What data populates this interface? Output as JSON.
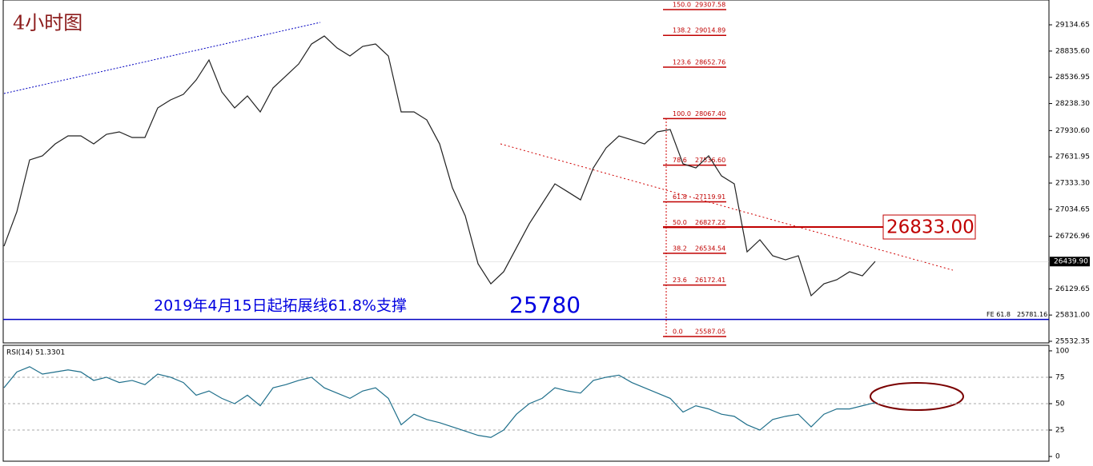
{
  "chart_data": [
    {
      "type": "line",
      "title": "4小时图",
      "color": "#222222",
      "values": [
        26615,
        27006,
        27597,
        27643,
        27779,
        27870,
        27870,
        27779,
        27888,
        27916,
        27852,
        27852,
        28189,
        28280,
        28343,
        28507,
        28734,
        28371,
        28189,
        28325,
        28143,
        28416,
        28552,
        28689,
        28916,
        29007,
        28871,
        28780,
        28889,
        28916,
        28780,
        28143,
        28143,
        28052,
        27779,
        27279,
        26961,
        26415,
        26187,
        26324,
        26597,
        26870,
        27097,
        27324,
        27234,
        27142,
        27506,
        27734,
        27870,
        27825,
        27779,
        27916,
        27943,
        27552,
        27506,
        27643,
        27415,
        27324,
        26551,
        26688,
        26506,
        26460,
        26506,
        26051,
        26187,
        26233,
        26324,
        26278,
        26442
      ],
      "ylim": [
        25523,
        29417
      ],
      "yticks": [
        {
          "value": 29134.65,
          "label": "29134.65"
        },
        {
          "value": 28835.6,
          "label": "28835.60"
        },
        {
          "value": 28536.95,
          "label": "28536.95"
        },
        {
          "value": 28238.3,
          "label": "28238.30"
        },
        {
          "value": 27930.6,
          "label": "27930.60"
        },
        {
          "value": 27631.95,
          "label": "27631.95"
        },
        {
          "value": 27333.3,
          "label": "27333.30"
        },
        {
          "value": 27034.65,
          "label": "27034.65"
        },
        {
          "value": 26726.96,
          "label": "26726.96"
        },
        {
          "value": 26129.65,
          "label": "26129.65"
        },
        {
          "value": 25831,
          "label": "25831.00"
        },
        {
          "value": 25532.35,
          "label": "25532.35"
        }
      ],
      "current_price": {
        "value": 26439.9,
        "label": "26439.90"
      },
      "fibonacci": [
        {
          "level": "150.0",
          "price": {
            "value": 29307.58,
            "label": "29307.58"
          }
        },
        {
          "level": "138.2",
          "price": {
            "value": 29014.89,
            "label": "29014.89"
          }
        },
        {
          "level": "123.6",
          "price": {
            "value": 28652.76,
            "label": "28652.76"
          }
        },
        {
          "level": "100.0",
          "price": {
            "value": 28067.4,
            "label": "28067.40"
          }
        },
        {
          "level": "78.6",
          "price": {
            "value": 27536.6,
            "label": "27536.60"
          }
        },
        {
          "level": "61.8",
          "price": {
            "value": 27119.91,
            "label": "27119.91"
          }
        },
        {
          "level": "50.0",
          "price": {
            "value": 26827.22,
            "label": "26827.22"
          }
        },
        {
          "level": "38.2",
          "price": {
            "value": 26534.54,
            "label": "26534.54"
          }
        },
        {
          "level": "23.6",
          "price": {
            "value": 26172.41,
            "label": "26172.41"
          }
        },
        {
          "level": "0.0",
          "price": {
            "value": 25587.05,
            "label": "25587.05"
          }
        }
      ],
      "fe_line": {
        "name": "FE 61.8",
        "value": 25781.16
      },
      "resistance": {
        "value": 26833,
        "label": "26833.00"
      },
      "annotations": [
        "2019年4月15日起拓展线61.8%支撑",
        "25780"
      ]
    },
    {
      "type": "line",
      "title": "RSI(14) 51.3301",
      "color": "#1f6f8b",
      "values": [
        65,
        80,
        85,
        78,
        80,
        82,
        80,
        72,
        75,
        70,
        72,
        68,
        78,
        75,
        70,
        58,
        62,
        55,
        50,
        58,
        48,
        65,
        68,
        72,
        75,
        65,
        60,
        55,
        62,
        65,
        55,
        30,
        40,
        35,
        32,
        28,
        24,
        20,
        18,
        25,
        40,
        50,
        55,
        65,
        62,
        60,
        72,
        75,
        77,
        70,
        65,
        60,
        55,
        42,
        48,
        45,
        40,
        38,
        30,
        25,
        35,
        38,
        40,
        28,
        40,
        45,
        45,
        48,
        51
      ],
      "ylim": [
        -4.5,
        104.5
      ],
      "yticks": [
        100,
        75,
        50,
        25,
        0
      ],
      "levels": [
        75,
        50,
        25
      ]
    }
  ]
}
